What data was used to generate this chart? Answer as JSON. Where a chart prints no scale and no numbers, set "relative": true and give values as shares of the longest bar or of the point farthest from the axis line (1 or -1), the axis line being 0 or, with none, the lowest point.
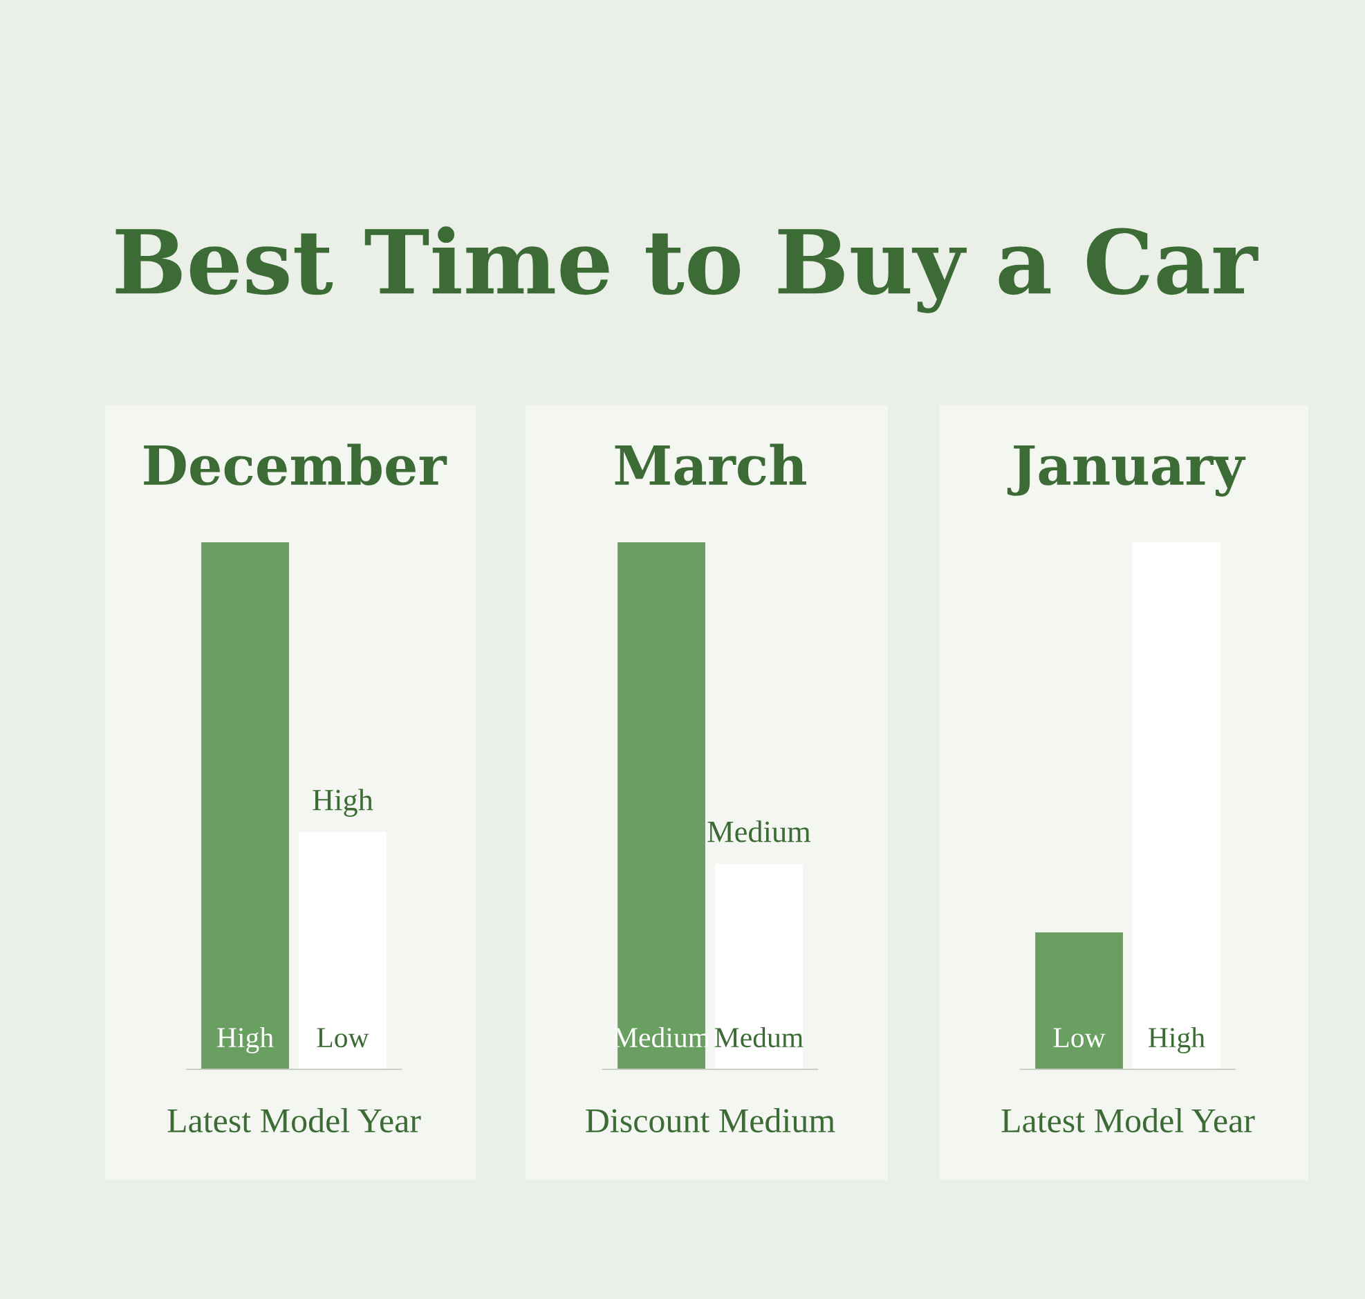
{
  "chart_data": [
    {
      "type": "other",
      "title": "Best Time to Buy a Car"
    },
    {
      "type": "bar",
      "title": "December",
      "xlabel": "Latest Model Year",
      "relative": true,
      "categories": [
        "High",
        "Low"
      ],
      "values": [
        1,
        0.45
      ],
      "colors": [
        "#6a9f62",
        "#ffffff"
      ],
      "annotations": [
        {
          "text": "High",
          "x": "Low",
          "y": 0.45
        }
      ]
    },
    {
      "type": "bar",
      "title": "March",
      "xlabel": "Discount Medium",
      "relative": true,
      "categories": [
        "Medium",
        "Medum"
      ],
      "values": [
        1,
        0.39
      ],
      "colors": [
        "#6a9f62",
        "#ffffff"
      ],
      "annotations": [
        {
          "text": "Medium",
          "x": "Medum",
          "y": 0.39
        }
      ]
    },
    {
      "type": "bar",
      "title": "January",
      "xlabel": "Latest Model Year",
      "relative": true,
      "categories": [
        "Low",
        "High"
      ],
      "values": [
        0.26,
        1
      ],
      "colors": [
        "#6a9f62",
        "#ffffff"
      ]
    }
  ]
}
